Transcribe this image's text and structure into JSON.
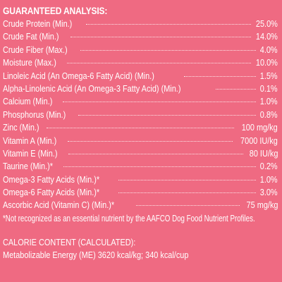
{
  "analysis": {
    "heading": "GUARANTEED ANALYSIS:",
    "rows": [
      {
        "label": "Crude Protein (Min.)",
        "value": "25.0%"
      },
      {
        "label": "Crude Fat (Min.)",
        "value": "14.0%"
      },
      {
        "label": "Crude Fiber (Max.)",
        "value": "4.0%"
      },
      {
        "label": "Moisture (Max.)",
        "value": "10.0%"
      },
      {
        "label": "Linoleic Acid (An Omega-6 Fatty Acid) (Min.)",
        "value": "1.5%"
      },
      {
        "label": "Alpha-Linolenic Acid (An Omega-3 Fatty Acid) (Min.)",
        "value": "0.1%"
      },
      {
        "label": "Calcium (Min.)",
        "value": "1.0%"
      },
      {
        "label": "Phosphorus (Min.)",
        "value": "0.8%"
      },
      {
        "label": "Zinc (Min.)",
        "value": "100 mg/kg"
      },
      {
        "label": "Vitamin A (Min.)",
        "value": "7000 IU/kg"
      },
      {
        "label": "Vitamin E (Min.)",
        "value": "80 IU/kg"
      },
      {
        "label": "Taurine (Min.)*",
        "value": "0.2%"
      },
      {
        "label": "Omega-3 Fatty Acids (Min.)*",
        "value": "1.0%"
      },
      {
        "label": "Omega-6 Fatty Acids (Min.)*",
        "value": "3.0%"
      },
      {
        "label": "Ascorbic Acid (Vitamin C) (Min.)*",
        "value": "75 mg/kg"
      }
    ],
    "footnote": "*Not recognized as an essential nutrient by the AAFCO Dog Food Nutrient Profiles."
  },
  "calorie": {
    "heading": "CALORIE CONTENT (CALCULATED):",
    "text": "Metabolizable Energy (ME) 3620 kcal/kg; 340 kcal/cup"
  }
}
